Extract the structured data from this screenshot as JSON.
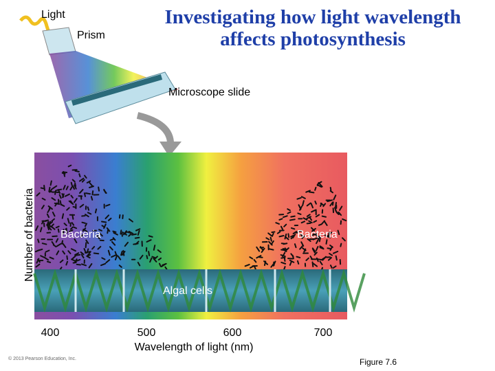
{
  "title": "Investigating how light wavelength affects photosynthesis",
  "labels": {
    "light": "Light",
    "prism": "Prism",
    "slide": "Microscope slide",
    "bacteria_left": "Bacteria",
    "bacteria_right": "Bacteria",
    "algal_cells": "Algal cells"
  },
  "axis": {
    "y_label": "Number of bacteria",
    "x_label": "Wavelength of light (nm)",
    "ticks": [
      "400",
      "500",
      "600",
      "700"
    ]
  },
  "footer": {
    "copyright": "© 2013 Pearson Education, Inc.",
    "figure": "Figure 7.6"
  }
}
